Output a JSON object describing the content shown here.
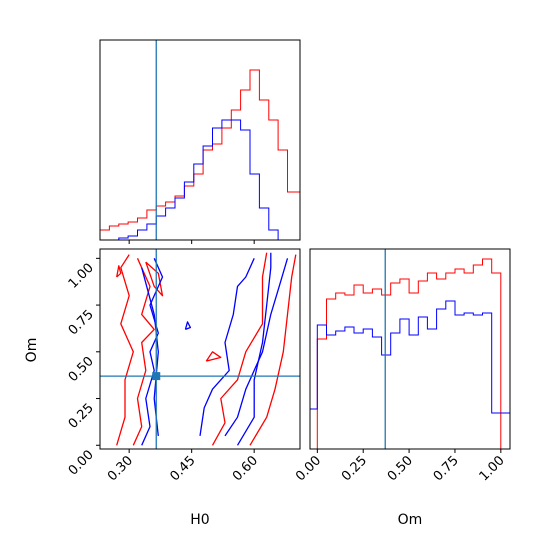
{
  "colors": {
    "series_a": "#ff0000",
    "series_b": "#0000ff",
    "truth": "#1f77b4"
  },
  "chart_data": [
    {
      "type": "histogram",
      "panel": "H0 marginal",
      "x_range": [
        0.23,
        0.71
      ],
      "y_ticks_shown": false,
      "truth_x": 0.365,
      "bin_edges": [
        0.23,
        0.2525,
        0.275,
        0.2975,
        0.32,
        0.3425,
        0.365,
        0.3875,
        0.41,
        0.4325,
        0.455,
        0.4775,
        0.5,
        0.5225,
        0.545,
        0.5675,
        0.59,
        0.6125,
        0.635,
        0.6575,
        0.68,
        0.71
      ],
      "series": [
        {
          "name": "",
          "color": "#ff0000",
          "values": [
            0.05,
            0.07,
            0.08,
            0.09,
            0.11,
            0.15,
            0.17,
            0.19,
            0.22,
            0.27,
            0.33,
            0.45,
            0.48,
            0.56,
            0.65,
            0.75,
            0.85,
            0.7,
            0.6,
            0.45,
            0.24,
            0.12
          ]
        },
        {
          "name": "",
          "color": "#0000ff",
          "values": [
            0.0,
            0.0,
            0.01,
            0.02,
            0.05,
            0.08,
            0.12,
            0.16,
            0.21,
            0.29,
            0.38,
            0.47,
            0.56,
            0.6,
            0.6,
            0.55,
            0.33,
            0.16,
            0.05,
            0.0,
            0.0,
            0.0
          ]
        }
      ]
    },
    {
      "type": "contour",
      "panel": "H0 vs Om",
      "xlabel": "H0",
      "ylabel": "Om",
      "x_range": [
        0.23,
        0.71
      ],
      "y_range": [
        -0.02,
        1.05
      ],
      "x_ticks": [
        "0.30",
        "0.45",
        "0.60"
      ],
      "y_ticks": [
        "0.00",
        "0.25",
        "0.50",
        "0.75",
        "1.00"
      ],
      "truth": {
        "x": 0.365,
        "y": 0.37
      },
      "series": [
        {
          "name": "",
          "color": "#ff0000",
          "contours": [
            [
              [
                0.27,
                0.0
              ],
              [
                0.29,
                0.15
              ],
              [
                0.29,
                0.35
              ],
              [
                0.31,
                0.5
              ],
              [
                0.28,
                0.65
              ],
              [
                0.3,
                0.8
              ],
              [
                0.28,
                0.95
              ],
              [
                0.3,
                1.02
              ]
            ],
            [
              [
                0.31,
                0.0
              ],
              [
                0.33,
                0.1
              ],
              [
                0.32,
                0.25
              ],
              [
                0.34,
                0.4
              ],
              [
                0.33,
                0.55
              ],
              [
                0.36,
                0.62
              ],
              [
                0.33,
                0.7
              ],
              [
                0.35,
                0.85
              ],
              [
                0.32,
                1.0
              ]
            ],
            [
              [
                0.5,
                0.0
              ],
              [
                0.53,
                0.12
              ],
              [
                0.52,
                0.25
              ],
              [
                0.56,
                0.35
              ],
              [
                0.58,
                0.5
              ],
              [
                0.62,
                0.65
              ],
              [
                0.62,
                0.9
              ],
              [
                0.63,
                1.03
              ]
            ],
            [
              [
                0.59,
                0.0
              ],
              [
                0.63,
                0.15
              ],
              [
                0.65,
                0.3
              ],
              [
                0.67,
                0.5
              ],
              [
                0.68,
                0.7
              ],
              [
                0.69,
                0.9
              ],
              [
                0.7,
                1.02
              ]
            ],
            [
              [
                0.34,
                0.98
              ],
              [
                0.36,
                0.85
              ],
              [
                0.38,
                0.8
              ],
              [
                0.37,
                0.92
              ],
              [
                0.34,
                0.98
              ]
            ],
            [
              [
                0.485,
                0.45
              ],
              [
                0.5,
                0.5
              ],
              [
                0.52,
                0.47
              ],
              [
                0.485,
                0.45
              ]
            ],
            [
              [
                0.27,
                0.9
              ],
              [
                0.275,
                0.96
              ],
              [
                0.28,
                0.92
              ],
              [
                0.27,
                0.9
              ]
            ]
          ]
        },
        {
          "name": "",
          "color": "#0000ff",
          "contours": [
            [
              [
                0.33,
                0.0
              ],
              [
                0.35,
                0.1
              ],
              [
                0.34,
                0.25
              ],
              [
                0.36,
                0.4
              ],
              [
                0.35,
                0.5
              ],
              [
                0.37,
                0.6
              ],
              [
                0.35,
                0.75
              ],
              [
                0.38,
                0.9
              ],
              [
                0.36,
                1.0
              ]
            ],
            [
              [
                0.33,
                0.95
              ],
              [
                0.36,
                0.7
              ],
              [
                0.37,
                0.5
              ],
              [
                0.36,
                0.25
              ],
              [
                0.37,
                0.05
              ]
            ],
            [
              [
                0.47,
                0.05
              ],
              [
                0.48,
                0.2
              ],
              [
                0.5,
                0.3
              ],
              [
                0.54,
                0.4
              ],
              [
                0.53,
                0.55
              ],
              [
                0.55,
                0.7
              ],
              [
                0.56,
                0.85
              ],
              [
                0.58,
                0.9
              ],
              [
                0.6,
                1.0
              ]
            ],
            [
              [
                0.53,
                0.05
              ],
              [
                0.56,
                0.15
              ],
              [
                0.58,
                0.3
              ],
              [
                0.62,
                0.5
              ],
              [
                0.64,
                0.7
              ],
              [
                0.66,
                0.85
              ],
              [
                0.68,
                1.0
              ]
            ],
            [
              [
                0.56,
                0.0
              ],
              [
                0.6,
                0.15
              ],
              [
                0.6,
                0.35
              ],
              [
                0.62,
                0.55
              ],
              [
                0.63,
                0.75
              ],
              [
                0.64,
                0.95
              ],
              [
                0.64,
                1.03
              ]
            ],
            [
              [
                0.435,
                0.62
              ],
              [
                0.44,
                0.66
              ],
              [
                0.447,
                0.63
              ],
              [
                0.435,
                0.62
              ]
            ]
          ]
        }
      ]
    },
    {
      "type": "histogram",
      "panel": "Om marginal",
      "xlabel": "Om",
      "x_range": [
        -0.04,
        1.05
      ],
      "x_ticks": [
        "0.00",
        "0.25",
        "0.50",
        "0.75",
        "1.00"
      ],
      "y_ticks_shown": false,
      "truth_x": 0.37,
      "bin_edges": [
        -0.04,
        0.0,
        0.05,
        0.1,
        0.15,
        0.2,
        0.25,
        0.3,
        0.35,
        0.4,
        0.45,
        0.5,
        0.55,
        0.6,
        0.65,
        0.7,
        0.75,
        0.8,
        0.85,
        0.9,
        0.95,
        1.0,
        1.05
      ],
      "series": [
        {
          "name": "",
          "color": "#ff0000",
          "values": [
            0.0,
            0.55,
            0.75,
            0.78,
            0.77,
            0.82,
            0.78,
            0.8,
            0.77,
            0.83,
            0.85,
            0.78,
            0.84,
            0.88,
            0.85,
            0.88,
            0.9,
            0.88,
            0.92,
            0.95,
            0.88,
            0.0
          ]
        },
        {
          "name": "",
          "color": "#0000ff",
          "values": [
            0.2,
            0.62,
            0.57,
            0.59,
            0.61,
            0.58,
            0.6,
            0.56,
            0.47,
            0.58,
            0.65,
            0.57,
            0.66,
            0.6,
            0.7,
            0.74,
            0.67,
            0.68,
            0.67,
            0.68,
            0.18,
            0.18
          ]
        }
      ]
    }
  ]
}
